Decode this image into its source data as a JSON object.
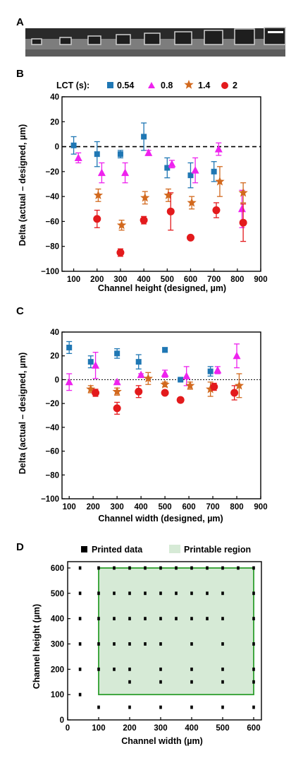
{
  "panel_labels": {
    "a": "A",
    "b": "B",
    "c": "C",
    "d": "D"
  },
  "colors": {
    "s054": "#1f77b4",
    "s08": "#ee22ee",
    "s14": "#d2691e",
    "s2": "#e31a1c",
    "region_fill": "#d6ead6",
    "region_edge": "#2e9e2e"
  },
  "chart_data": [
    {
      "panel": "B",
      "type": "scatter",
      "xlabel": "Channel height (designed, µm)",
      "ylabel": "Delta (actual – designed, µm)",
      "xlim": [
        50,
        900
      ],
      "ylim": [
        -100,
        40
      ],
      "xticks": [
        100,
        200,
        300,
        400,
        500,
        600,
        700,
        800,
        900
      ],
      "yticks": [
        40,
        20,
        0,
        -20,
        -40,
        -60,
        -80,
        -100
      ],
      "reference_line": 0,
      "legend_title": "LCT (s):",
      "legend_position": "top",
      "series": [
        {
          "name": "0.54",
          "marker": "square",
          "color": "#1f77b4",
          "x": [
            100,
            200,
            300,
            400,
            500,
            600,
            700
          ],
          "y": [
            1,
            -6,
            -6,
            8,
            -17,
            -23,
            -20
          ],
          "err": [
            7,
            10,
            3,
            11,
            8,
            10,
            8
          ]
        },
        {
          "name": "0.8",
          "marker": "triangle",
          "color": "#ee22ee",
          "x": [
            120,
            220,
            320,
            420,
            520,
            620,
            720,
            820
          ],
          "y": [
            -9,
            -21,
            -21,
            -5,
            -14,
            -19,
            -2,
            -50
          ],
          "err": [
            4,
            8,
            8,
            2,
            3,
            10,
            5,
            15
          ]
        },
        {
          "name": "1.4",
          "marker": "star",
          "color": "#d2691e",
          "x": [
            205,
            305,
            405,
            505,
            605,
            725,
            825
          ],
          "y": [
            -39,
            -63,
            -41,
            -39,
            -45,
            -28,
            -37
          ],
          "err": [
            5,
            4,
            5,
            5,
            5,
            12,
            8
          ]
        },
        {
          "name": "2",
          "marker": "circle",
          "color": "#e31a1c",
          "x": [
            200,
            300,
            400,
            515,
            600,
            710,
            825
          ],
          "y": [
            -58,
            -85,
            -59,
            -52,
            -73,
            -51,
            -61
          ],
          "err": [
            7,
            3,
            3,
            15,
            1,
            6,
            15
          ]
        }
      ]
    },
    {
      "panel": "C",
      "type": "scatter",
      "xlabel": "Channel width (designed, µm)",
      "ylabel": "Delta (actual – designed, µm)",
      "xlim": [
        70,
        900
      ],
      "ylim": [
        -100,
        40
      ],
      "xticks": [
        100,
        200,
        300,
        400,
        500,
        600,
        700,
        800,
        900
      ],
      "yticks": [
        40,
        20,
        0,
        -20,
        -40,
        -60,
        -80,
        -100
      ],
      "reference_line": 0,
      "series": [
        {
          "name": "0.54",
          "marker": "square",
          "color": "#1f77b4",
          "x": [
            100,
            190,
            300,
            390,
            500,
            565,
            690
          ],
          "y": [
            27,
            15,
            22,
            15,
            25,
            0,
            7
          ],
          "err": [
            5,
            5,
            4,
            6,
            2,
            1,
            4
          ]
        },
        {
          "name": "0.8",
          "marker": "triangle",
          "color": "#ee22ee",
          "x": [
            100,
            210,
            300,
            400,
            500,
            590,
            720,
            800
          ],
          "y": [
            -2,
            12,
            -2,
            4,
            5,
            3,
            8,
            20
          ],
          "err": [
            7,
            11,
            1,
            1,
            3,
            8,
            3,
            10
          ]
        },
        {
          "name": "1.4",
          "marker": "star",
          "color": "#d2691e",
          "x": [
            190,
            300,
            430,
            500,
            605,
            690,
            810
          ],
          "y": [
            -8,
            -10,
            1,
            -4,
            -5,
            -8,
            -5
          ],
          "err": [
            3,
            3,
            5,
            2,
            3,
            6,
            10
          ]
        },
        {
          "name": "2",
          "marker": "circle",
          "color": "#e31a1c",
          "x": [
            210,
            300,
            390,
            500,
            565,
            705,
            790
          ],
          "y": [
            -11,
            -24,
            -10,
            -11,
            -17,
            -6,
            -11
          ],
          "err": [
            3,
            5,
            5,
            1,
            2,
            3,
            6
          ]
        }
      ]
    },
    {
      "panel": "D",
      "type": "scatter",
      "xlabel": "Channel width (µm)",
      "ylabel": "Channel height (µm)",
      "xlim": [
        0,
        625
      ],
      "ylim": [
        0,
        625
      ],
      "xticks": [
        0,
        100,
        200,
        300,
        400,
        500,
        600
      ],
      "yticks": [
        0,
        100,
        200,
        300,
        400,
        500,
        600
      ],
      "legend_position": "top",
      "series": [
        {
          "name": "Printed data",
          "marker": "square",
          "color": "#000000",
          "points": [
            [
              40,
              600
            ],
            [
              100,
              600
            ],
            [
              150,
              600
            ],
            [
              200,
              600
            ],
            [
              250,
              600
            ],
            [
              300,
              600
            ],
            [
              350,
              600
            ],
            [
              400,
              600
            ],
            [
              450,
              600
            ],
            [
              500,
              600
            ],
            [
              550,
              600
            ],
            [
              600,
              600
            ],
            [
              40,
              500
            ],
            [
              100,
              500
            ],
            [
              150,
              500
            ],
            [
              200,
              500
            ],
            [
              250,
              500
            ],
            [
              300,
              500
            ],
            [
              350,
              500
            ],
            [
              400,
              500
            ],
            [
              450,
              500
            ],
            [
              500,
              500
            ],
            [
              600,
              500
            ],
            [
              40,
              400
            ],
            [
              100,
              400
            ],
            [
              150,
              400
            ],
            [
              200,
              400
            ],
            [
              250,
              400
            ],
            [
              300,
              400
            ],
            [
              350,
              400
            ],
            [
              400,
              400
            ],
            [
              450,
              400
            ],
            [
              500,
              400
            ],
            [
              600,
              400
            ],
            [
              40,
              300
            ],
            [
              100,
              300
            ],
            [
              150,
              300
            ],
            [
              200,
              300
            ],
            [
              250,
              300
            ],
            [
              300,
              300
            ],
            [
              400,
              300
            ],
            [
              500,
              300
            ],
            [
              600,
              300
            ],
            [
              40,
              200
            ],
            [
              100,
              200
            ],
            [
              150,
              200
            ],
            [
              200,
              200
            ],
            [
              300,
              200
            ],
            [
              400,
              200
            ],
            [
              500,
              200
            ],
            [
              600,
              200
            ],
            [
              40,
              100
            ],
            [
              200,
              150
            ],
            [
              300,
              150
            ],
            [
              400,
              150
            ],
            [
              500,
              150
            ],
            [
              600,
              150
            ],
            [
              100,
              50
            ],
            [
              200,
              50
            ],
            [
              300,
              50
            ],
            [
              400,
              50
            ],
            [
              500,
              50
            ],
            [
              600,
              50
            ]
          ]
        },
        {
          "name": "Printable region",
          "region": {
            "x0": 100,
            "x1": 600,
            "y0": 100,
            "y1": 600
          }
        }
      ]
    }
  ]
}
